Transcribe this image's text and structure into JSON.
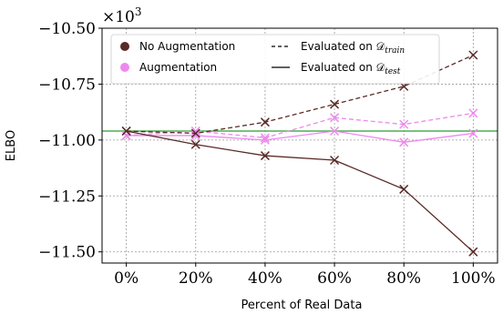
{
  "chart_data": {
    "type": "line",
    "title": "",
    "xlabel": "Percent of Real Data",
    "ylabel": "ELBO",
    "y_multiplier_label": "×10",
    "y_multiplier_exponent": "3",
    "x": [
      0,
      20,
      40,
      60,
      80,
      100
    ],
    "x_tick_labels": [
      "0%",
      "20%",
      "40%",
      "60%",
      "80%",
      "100%"
    ],
    "y_ticks": [
      -10.5,
      -10.75,
      -11.0,
      -11.25,
      -11.5
    ],
    "y_tick_labels": [
      "−10.50",
      "−10.75",
      "−11.00",
      "−11.25",
      "−11.50"
    ],
    "xlim": [
      -7,
      107
    ],
    "ylim": [
      -11.55,
      -10.5
    ],
    "grid": true,
    "legend_position": "top-left",
    "reference_line": {
      "y": -10.96,
      "color": "#4caf50"
    },
    "colors": {
      "no_aug": "#5a2a27",
      "aug": "#ee88ee"
    },
    "series": [
      {
        "group": "No Augmentation",
        "split": "train",
        "dash": true,
        "color": "#5a2a27",
        "values": [
          -10.96,
          -10.97,
          -10.92,
          -10.84,
          -10.76,
          -10.62
        ]
      },
      {
        "group": "No Augmentation",
        "split": "test",
        "dash": false,
        "color": "#5a2a27",
        "values": [
          -10.96,
          -11.02,
          -11.07,
          -11.09,
          -11.22,
          -11.5
        ]
      },
      {
        "group": "Augmentation",
        "split": "train",
        "dash": true,
        "color": "#ee88ee",
        "values": [
          -10.98,
          -10.96,
          -10.99,
          -10.9,
          -10.93,
          -10.88
        ]
      },
      {
        "group": "Augmentation",
        "split": "test",
        "dash": false,
        "color": "#ee88ee",
        "values": [
          -10.98,
          -10.98,
          -11.0,
          -10.96,
          -11.01,
          -10.97
        ]
      }
    ],
    "legend": {
      "no_aug_label": "No Augmentation",
      "aug_label": "Augmentation",
      "train_label_prefix": "Evaluated on ",
      "train_label_sub": "train",
      "test_label_prefix": "Evaluated on ",
      "test_label_sub": "test",
      "dataset_symbol": "𝒟"
    }
  }
}
